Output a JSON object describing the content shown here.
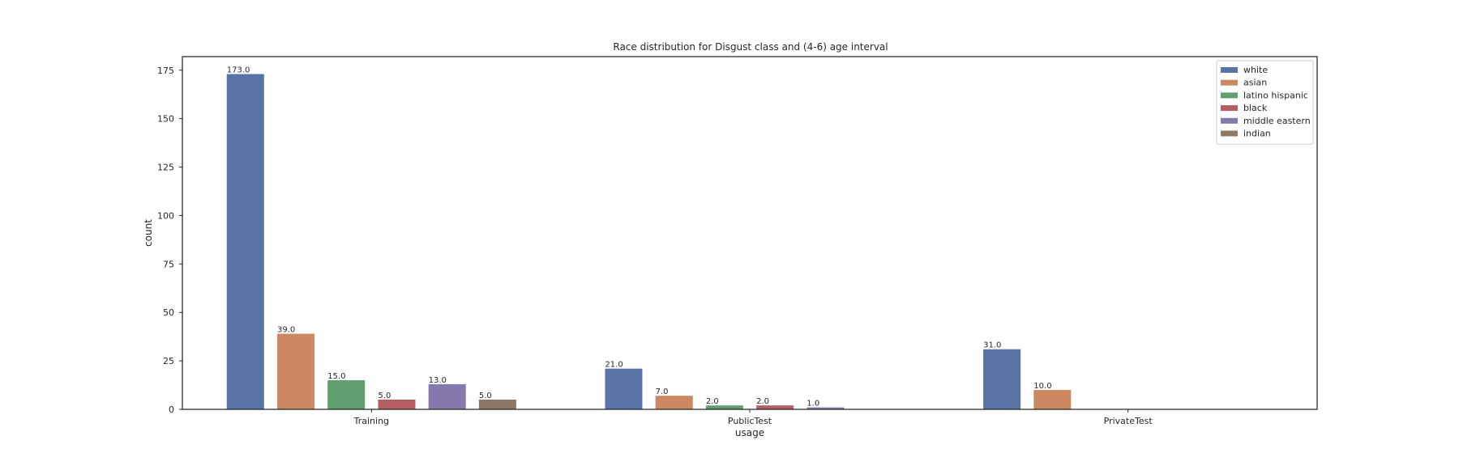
{
  "chart_data": {
    "type": "bar",
    "title": "Race distribution for Disgust class and (4-6) age interval",
    "xlabel": "usage",
    "ylabel": "count",
    "categories": [
      "Training",
      "PublicTest",
      "PrivateTest"
    ],
    "ylim": [
      0,
      182
    ],
    "yticks": [
      0,
      25,
      50,
      75,
      100,
      125,
      150,
      175
    ],
    "grid": false,
    "legend_position": "top-right",
    "series": [
      {
        "name": "white",
        "color": "#5874a6",
        "values": [
          173,
          21,
          31
        ],
        "labels": [
          "173.0",
          "21.0",
          "31.0"
        ]
      },
      {
        "name": "asian",
        "color": "#cc8860",
        "values": [
          39,
          7,
          10
        ],
        "labels": [
          "39.0",
          "7.0",
          "10.0"
        ]
      },
      {
        "name": "latino hispanic",
        "color": "#5f9e6e",
        "values": [
          15,
          2,
          null
        ],
        "labels": [
          "15.0",
          "2.0",
          null
        ]
      },
      {
        "name": "black",
        "color": "#b55d60",
        "values": [
          5,
          2,
          null
        ],
        "labels": [
          "5.0",
          "2.0",
          null
        ]
      },
      {
        "name": "middle eastern",
        "color": "#857aab",
        "values": [
          13,
          1,
          null
        ],
        "labels": [
          "13.0",
          "1.0",
          null
        ]
      },
      {
        "name": "indian",
        "color": "#8d7866",
        "values": [
          5,
          null,
          null
        ],
        "labels": [
          "5.0",
          null,
          null
        ]
      }
    ]
  }
}
